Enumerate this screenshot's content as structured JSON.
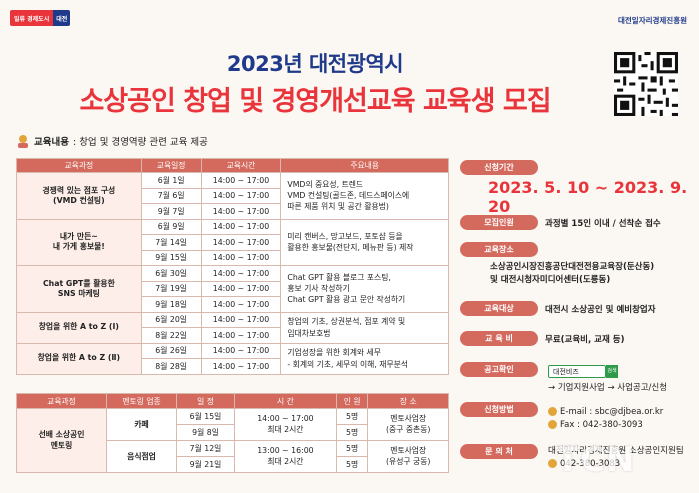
{
  "header": {
    "logo_part1": "일류 경제도시",
    "logo_part2": "대전",
    "org": "대전일자리경제진흥원",
    "title_line1": "2023년 대전광역시",
    "title_line2": "소상공인 창업 및 경영개선교육 교육생 모집"
  },
  "edu_content": {
    "label": "교육내용",
    "text": ": 창업 및 경영역량 관련 교육 제공"
  },
  "table1": {
    "headers": [
      "교육과정",
      "교육일정",
      "교육시간",
      "주요내용"
    ],
    "courses": [
      {
        "name": "경쟁력 있는 점포 구성\n(VMD 컨설팅)",
        "dates": [
          "6월 1일",
          "7월 6일",
          "9월 7일"
        ],
        "times": [
          "14:00 ~ 17:00",
          "14:00 ~ 17:00",
          "14:00 ~ 17:00"
        ],
        "content": "VMD의 중요성, 트렌드\nVMD 컨설팅(골드존, 데드스페이스에\n따른 제품 위치 및 공간 활용법)"
      },
      {
        "name": "내가 만든~\n내 가게 홍보물!",
        "dates": [
          "6월 9일",
          "7월 14일",
          "9월 15일"
        ],
        "times": [
          "14:00 ~ 17:00",
          "14:00 ~ 17:00",
          "14:00 ~ 17:00"
        ],
        "content": "미리 캔버스, 망고보드, 포토샵 등을\n활용한 홍보물(전단지, 메뉴판 등) 제작"
      },
      {
        "name": "Chat GPT를 활용한\nSNS 마케팅",
        "dates": [
          "6월 30일",
          "7월 19일",
          "9월 18일"
        ],
        "times": [
          "14:00 ~ 17:00",
          "14:00 ~ 17:00",
          "14:00 ~ 17:00"
        ],
        "content": "Chat GPT 활용 블로그 포스팅,\n홍보 기사 작성하기\nChat GPT 활용 광고 문안 작성하기"
      },
      {
        "name": "창업을 위한 A to Z (Ⅰ)",
        "dates": [
          "6월 20일",
          "8월 22일"
        ],
        "times": [
          "14:00 ~ 17:00",
          "14:00 ~ 17:00"
        ],
        "content": "창업의 기초, 상권분석, 점포 계약 및\n임대차보호법"
      },
      {
        "name": "창업을 위한 A to Z (Ⅱ)",
        "dates": [
          "6월 26일",
          "8월 28일"
        ],
        "times": [
          "14:00 ~ 17:00",
          "14:00 ~ 17:00"
        ],
        "content": "기업성장을 위한 회계와 세무\n- 회계의 기초, 세무의 이해, 재무분석"
      }
    ]
  },
  "table2": {
    "headers": [
      "교육과정",
      "멘토링 업종",
      "일 정",
      "시 간",
      "인 원",
      "장 소"
    ],
    "course": "선배 소상공인\n멘토링",
    "rows": [
      {
        "field": "카페",
        "dates": [
          "6월 15일",
          "9월 8일"
        ],
        "time": "14:00 ~ 17:00\n최대 2시간",
        "people": [
          "5명",
          "5명"
        ],
        "place": "멘토사업장\n(중구 중촌동)"
      },
      {
        "field": "음식점업",
        "dates": [
          "7월 12일",
          "9월 21일"
        ],
        "time": "13:00 ~ 16:00\n최대 2시간",
        "people": [
          "5명",
          "5명"
        ],
        "place": "멘토사업장\n(유성구 궁동)"
      }
    ]
  },
  "info": {
    "period_label": "신청기간",
    "period_value": "2023. 5. 10 ~ 2023. 9. 20",
    "recruit_label": "모집인원",
    "recruit_value": "과정별 15인 이내 / 선착순 접수",
    "place_label": "교육장소",
    "place_value": "소상공인시장진흥공단대전전용교육장(둔산동)\n및 대전시청자미디어센터(도룡동)",
    "target_label": "교육대상",
    "target_value": "대전시 소상공인 및 예비창업자",
    "fee_label": "교 육 비",
    "fee_value": "무료(교육비, 교재 등)",
    "notice_label": "공고확인",
    "search_value": "대전비즈",
    "search_btn": "검색",
    "notice_path": "→ 기업지원사업 → 사업공고/신청",
    "apply_label": "신청방법",
    "apply_email": "E-mail : sbc@djbea.or.kr",
    "apply_fax": "Fax : 042-380-3093",
    "inquiry_label": "문 의 처",
    "inquiry_value": "대전일자리경제진흥원 소상공인지원팀",
    "inquiry_phone": "042-380-3083"
  },
  "watermark": "TCN",
  "colors": {
    "navy": "#1f3a8a",
    "red": "#e9343b",
    "salmon": "#d46a5e",
    "green": "#2e9a4a"
  }
}
